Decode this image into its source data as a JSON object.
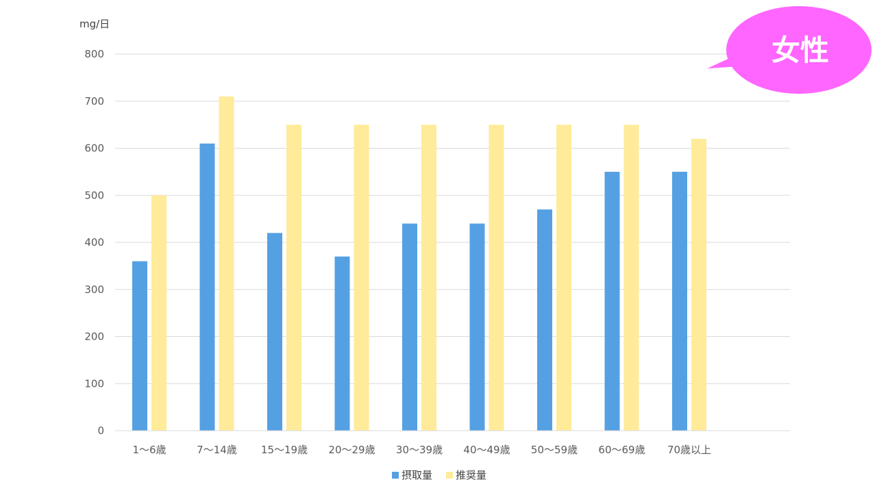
{
  "badge": {
    "text": "女性",
    "color": "#ff66ff"
  },
  "chart_data": {
    "type": "bar",
    "unit_label": "mg/日",
    "categories": [
      "1～6歳",
      "7～14歳",
      "15～19歳",
      "20～29歳",
      "30～39歳",
      "40～49歳",
      "50～59歳",
      "60～69歳",
      "70歳以上"
    ],
    "series": [
      {
        "name": "摂取量",
        "color": "#55a0e3",
        "values": [
          360,
          610,
          420,
          370,
          440,
          440,
          470,
          550,
          550
        ]
      },
      {
        "name": "推奨量",
        "color": "#ffeb99",
        "values": [
          500,
          710,
          650,
          650,
          650,
          650,
          650,
          650,
          620
        ]
      }
    ],
    "ylim": [
      0,
      800
    ],
    "yticks": [
      0,
      100,
      200,
      300,
      400,
      500,
      600,
      700,
      800
    ],
    "grid": true,
    "legend": "bottom"
  }
}
